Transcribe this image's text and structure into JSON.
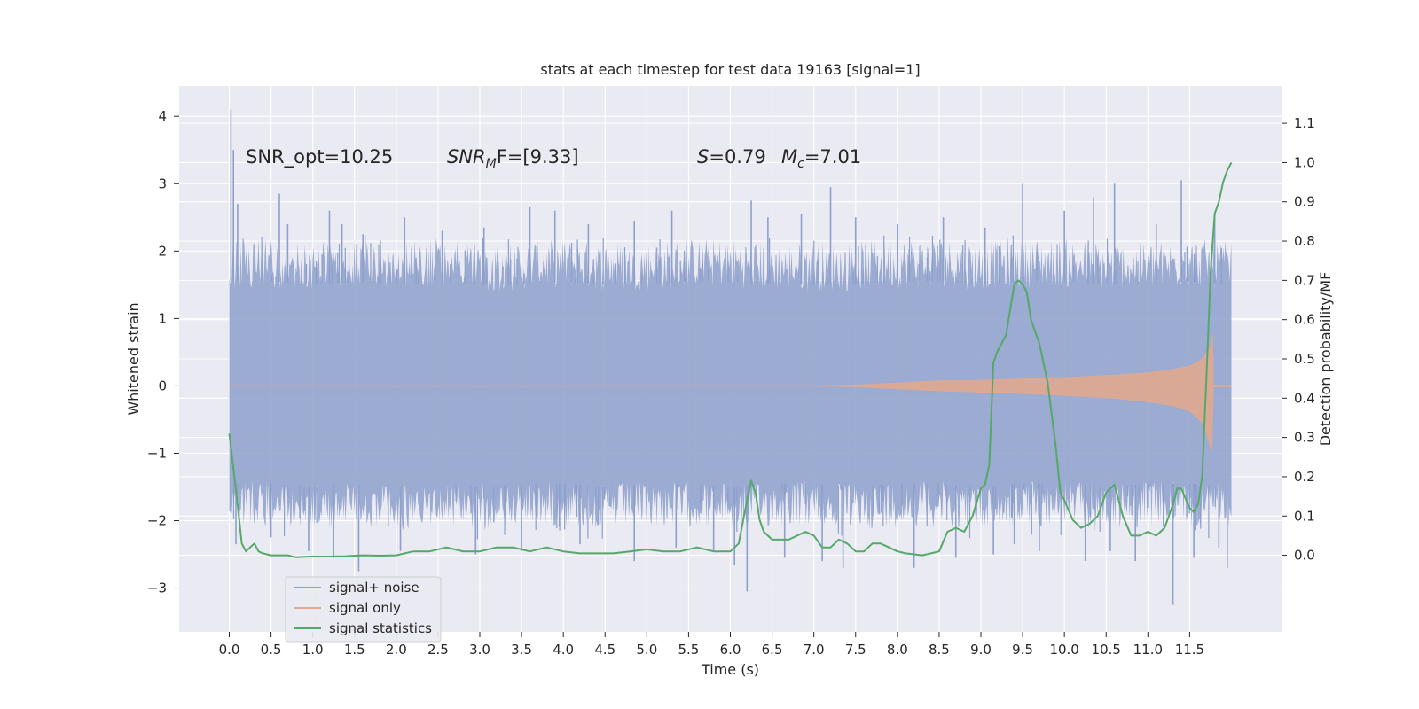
{
  "chart_data": {
    "type": "line",
    "title": "stats at each timestep for test data 19163 [signal=1]",
    "xlabel": "Time (s)",
    "ylabel": "Whitened strain",
    "ylabel_right": "Detection probability/MF",
    "xlim": [
      -0.6,
      12.6
    ],
    "ylim": [
      -3.65,
      4.45
    ],
    "ylim_right": [
      -0.195,
      1.195
    ],
    "x_ticks": [
      "0.0",
      "0.5",
      "1.0",
      "1.5",
      "2.0",
      "2.5",
      "3.0",
      "3.5",
      "4.0",
      "4.5",
      "5.0",
      "5.5",
      "6.0",
      "6.5",
      "7.0",
      "7.5",
      "8.0",
      "8.5",
      "9.0",
      "9.5",
      "10.0",
      "10.5",
      "11.0",
      "11.5"
    ],
    "y_ticks": [
      "4",
      "3",
      "2",
      "1",
      "0",
      "−1",
      "−2",
      "−3"
    ],
    "y_ticks_right": [
      "1.1",
      "1.0",
      "0.9",
      "0.8",
      "0.7",
      "0.6",
      "0.5",
      "0.4",
      "0.3",
      "0.2",
      "0.1",
      "0.0"
    ],
    "annotations": {
      "snr_opt": "SNR_opt=10.25",
      "snr_mf_main": "SNR",
      "snr_mf_sub": "M",
      "snr_mf_rest": "F=[9.33]",
      "s_main": "S",
      "s_rest": "=0.79",
      "mc_main": "M",
      "mc_sub": "c",
      "mc_rest": "=7.01"
    },
    "legend": {
      "placement": "lower-left",
      "entries": [
        {
          "label": "signal+ noise",
          "color": "#8da0cb"
        },
        {
          "label": "signal only",
          "color": "#e5a88c"
        },
        {
          "label": "signal statistics",
          "color": "#55a868"
        }
      ]
    },
    "series": [
      {
        "name": "signal+ noise",
        "kind": "noise-band",
        "color": "#8da0cb",
        "x_range": [
          0.0,
          12.0
        ],
        "band_upper": [
          [
            0.0,
            1.55
          ],
          [
            0.5,
            1.55
          ],
          [
            1.0,
            1.5
          ],
          [
            1.5,
            1.55
          ],
          [
            2.0,
            1.5
          ],
          [
            2.5,
            1.55
          ],
          [
            3.0,
            1.5
          ],
          [
            3.5,
            1.5
          ],
          [
            4.0,
            1.55
          ],
          [
            4.5,
            1.5
          ],
          [
            5.0,
            1.5
          ],
          [
            5.5,
            1.55
          ],
          [
            6.0,
            1.55
          ],
          [
            6.5,
            1.5
          ],
          [
            7.0,
            1.5
          ],
          [
            7.5,
            1.5
          ],
          [
            8.0,
            1.55
          ],
          [
            8.5,
            1.55
          ],
          [
            9.0,
            1.5
          ],
          [
            9.5,
            1.55
          ],
          [
            10.0,
            1.55
          ],
          [
            10.5,
            1.5
          ],
          [
            11.0,
            1.5
          ],
          [
            11.5,
            1.55
          ],
          [
            12.0,
            1.5
          ]
        ],
        "band_lower": [
          [
            0.0,
            -1.45
          ],
          [
            0.5,
            -1.45
          ],
          [
            1.0,
            -1.5
          ],
          [
            1.5,
            -1.45
          ],
          [
            2.0,
            -1.5
          ],
          [
            2.5,
            -1.45
          ],
          [
            3.0,
            -1.5
          ],
          [
            3.5,
            -1.45
          ],
          [
            4.0,
            -1.45
          ],
          [
            4.5,
            -1.5
          ],
          [
            5.0,
            -1.45
          ],
          [
            5.5,
            -1.45
          ],
          [
            6.0,
            -1.5
          ],
          [
            6.5,
            -1.45
          ],
          [
            7.0,
            -1.45
          ],
          [
            7.5,
            -1.5
          ],
          [
            8.0,
            -1.45
          ],
          [
            8.5,
            -1.45
          ],
          [
            9.0,
            -1.5
          ],
          [
            9.5,
            -1.45
          ],
          [
            10.0,
            -1.45
          ],
          [
            10.5,
            -1.5
          ],
          [
            11.0,
            -1.45
          ],
          [
            11.5,
            -1.45
          ],
          [
            12.0,
            -1.5
          ]
        ],
        "spikes": [
          [
            0.02,
            4.1
          ],
          [
            0.05,
            3.5
          ],
          [
            0.1,
            2.7
          ],
          [
            0.6,
            2.85
          ],
          [
            0.7,
            2.4
          ],
          [
            1.2,
            2.6
          ],
          [
            1.35,
            2.4
          ],
          [
            1.6,
            2.25
          ],
          [
            2.1,
            2.5
          ],
          [
            2.55,
            2.3
          ],
          [
            3.05,
            2.35
          ],
          [
            3.6,
            2.65
          ],
          [
            3.9,
            2.6
          ],
          [
            4.3,
            2.4
          ],
          [
            4.85,
            2.45
          ],
          [
            5.3,
            2.6
          ],
          [
            6.25,
            2.75
          ],
          [
            6.45,
            2.5
          ],
          [
            6.85,
            2.55
          ],
          [
            7.2,
            2.95
          ],
          [
            7.5,
            2.5
          ],
          [
            8.0,
            2.4
          ],
          [
            8.55,
            2.5
          ],
          [
            9.05,
            2.35
          ],
          [
            9.5,
            3.0
          ],
          [
            10.0,
            2.6
          ],
          [
            10.35,
            2.8
          ],
          [
            10.6,
            3.0
          ],
          [
            11.1,
            2.4
          ],
          [
            11.4,
            3.05
          ],
          [
            11.8,
            2.5
          ],
          [
            0.08,
            -2.35
          ],
          [
            0.5,
            -2.25
          ],
          [
            0.95,
            -2.45
          ],
          [
            1.25,
            -2.55
          ],
          [
            1.55,
            -2.75
          ],
          [
            2.05,
            -2.45
          ],
          [
            2.95,
            -2.5
          ],
          [
            3.5,
            -2.45
          ],
          [
            4.2,
            -2.35
          ],
          [
            4.85,
            -2.6
          ],
          [
            5.35,
            -2.4
          ],
          [
            5.8,
            -2.45
          ],
          [
            6.05,
            -2.65
          ],
          [
            6.2,
            -3.05
          ],
          [
            6.65,
            -2.55
          ],
          [
            7.1,
            -2.6
          ],
          [
            7.35,
            -2.7
          ],
          [
            8.2,
            -2.7
          ],
          [
            8.7,
            -2.55
          ],
          [
            9.15,
            -2.5
          ],
          [
            9.4,
            -2.35
          ],
          [
            9.7,
            -2.45
          ],
          [
            10.25,
            -2.6
          ],
          [
            10.55,
            -2.45
          ],
          [
            10.85,
            -2.6
          ],
          [
            11.3,
            -3.25
          ],
          [
            11.55,
            -2.55
          ],
          [
            11.85,
            -2.4
          ],
          [
            11.95,
            -2.7
          ]
        ]
      },
      {
        "name": "signal only",
        "kind": "envelope",
        "color": "#e5a88c",
        "x_range": [
          0.0,
          12.0
        ],
        "envelope": [
          [
            0.0,
            0.01
          ],
          [
            7.0,
            0.01
          ],
          [
            7.5,
            0.02
          ],
          [
            8.0,
            0.05
          ],
          [
            8.5,
            0.08
          ],
          [
            9.0,
            0.09
          ],
          [
            9.5,
            0.11
          ],
          [
            10.0,
            0.13
          ],
          [
            10.5,
            0.16
          ],
          [
            11.0,
            0.2
          ],
          [
            11.3,
            0.25
          ],
          [
            11.5,
            0.3
          ],
          [
            11.65,
            0.4
          ],
          [
            11.75,
            0.6
          ],
          [
            11.78,
            0.8
          ],
          [
            11.79,
            0.02
          ],
          [
            12.0,
            0.02
          ]
        ],
        "envelope_lower": [
          [
            0.0,
            -0.01
          ],
          [
            7.0,
            -0.01
          ],
          [
            7.5,
            -0.02
          ],
          [
            8.0,
            -0.05
          ],
          [
            8.5,
            -0.08
          ],
          [
            9.0,
            -0.1
          ],
          [
            9.5,
            -0.12
          ],
          [
            10.0,
            -0.15
          ],
          [
            10.5,
            -0.18
          ],
          [
            11.0,
            -0.24
          ],
          [
            11.3,
            -0.3
          ],
          [
            11.5,
            -0.38
          ],
          [
            11.65,
            -0.55
          ],
          [
            11.72,
            -0.8
          ],
          [
            11.77,
            -1.0
          ],
          [
            11.79,
            -0.02
          ],
          [
            12.0,
            -0.02
          ]
        ]
      },
      {
        "name": "signal statistics",
        "kind": "line-right-axis",
        "color": "#55a868",
        "points": [
          [
            0.0,
            0.31
          ],
          [
            0.05,
            0.22
          ],
          [
            0.1,
            0.13
          ],
          [
            0.15,
            0.03
          ],
          [
            0.2,
            0.01
          ],
          [
            0.25,
            0.02
          ],
          [
            0.3,
            0.03
          ],
          [
            0.35,
            0.01
          ],
          [
            0.4,
            0.005
          ],
          [
            0.5,
            0.0
          ],
          [
            0.6,
            0.0
          ],
          [
            0.7,
            0.0
          ],
          [
            0.8,
            -0.005
          ],
          [
            1.0,
            -0.003
          ],
          [
            1.2,
            -0.003
          ],
          [
            1.4,
            -0.002
          ],
          [
            1.6,
            0.0
          ],
          [
            1.8,
            -0.001
          ],
          [
            2.0,
            0.0
          ],
          [
            2.2,
            0.01
          ],
          [
            2.4,
            0.01
          ],
          [
            2.6,
            0.02
          ],
          [
            2.8,
            0.01
          ],
          [
            3.0,
            0.01
          ],
          [
            3.2,
            0.02
          ],
          [
            3.4,
            0.02
          ],
          [
            3.6,
            0.01
          ],
          [
            3.8,
            0.02
          ],
          [
            4.0,
            0.01
          ],
          [
            4.2,
            0.005
          ],
          [
            4.4,
            0.005
          ],
          [
            4.6,
            0.005
          ],
          [
            4.8,
            0.01
          ],
          [
            5.0,
            0.015
          ],
          [
            5.2,
            0.01
          ],
          [
            5.4,
            0.01
          ],
          [
            5.6,
            0.02
          ],
          [
            5.8,
            0.01
          ],
          [
            6.0,
            0.01
          ],
          [
            6.1,
            0.03
          ],
          [
            6.2,
            0.14
          ],
          [
            6.25,
            0.19
          ],
          [
            6.3,
            0.16
          ],
          [
            6.35,
            0.09
          ],
          [
            6.4,
            0.06
          ],
          [
            6.5,
            0.04
          ],
          [
            6.7,
            0.04
          ],
          [
            6.8,
            0.05
          ],
          [
            6.9,
            0.06
          ],
          [
            7.0,
            0.05
          ],
          [
            7.1,
            0.02
          ],
          [
            7.2,
            0.02
          ],
          [
            7.3,
            0.04
          ],
          [
            7.4,
            0.03
          ],
          [
            7.5,
            0.01
          ],
          [
            7.6,
            0.01
          ],
          [
            7.7,
            0.03
          ],
          [
            7.8,
            0.03
          ],
          [
            7.9,
            0.02
          ],
          [
            8.0,
            0.01
          ],
          [
            8.1,
            0.005
          ],
          [
            8.3,
            0.0
          ],
          [
            8.5,
            0.01
          ],
          [
            8.6,
            0.06
          ],
          [
            8.7,
            0.07
          ],
          [
            8.8,
            0.06
          ],
          [
            8.9,
            0.1
          ],
          [
            9.0,
            0.17
          ],
          [
            9.05,
            0.18
          ],
          [
            9.1,
            0.23
          ],
          [
            9.15,
            0.49
          ],
          [
            9.2,
            0.52
          ],
          [
            9.3,
            0.56
          ],
          [
            9.4,
            0.69
          ],
          [
            9.45,
            0.7
          ],
          [
            9.5,
            0.69
          ],
          [
            9.55,
            0.67
          ],
          [
            9.6,
            0.6
          ],
          [
            9.7,
            0.54
          ],
          [
            9.8,
            0.44
          ],
          [
            9.9,
            0.27
          ],
          [
            9.95,
            0.16
          ],
          [
            10.0,
            0.14
          ],
          [
            10.1,
            0.09
          ],
          [
            10.2,
            0.07
          ],
          [
            10.3,
            0.08
          ],
          [
            10.4,
            0.1
          ],
          [
            10.5,
            0.16
          ],
          [
            10.6,
            0.18
          ],
          [
            10.7,
            0.1
          ],
          [
            10.8,
            0.05
          ],
          [
            10.9,
            0.05
          ],
          [
            11.0,
            0.06
          ],
          [
            11.1,
            0.05
          ],
          [
            11.2,
            0.07
          ],
          [
            11.3,
            0.13
          ],
          [
            11.35,
            0.17
          ],
          [
            11.4,
            0.17
          ],
          [
            11.5,
            0.12
          ],
          [
            11.55,
            0.11
          ],
          [
            11.6,
            0.13
          ],
          [
            11.65,
            0.2
          ],
          [
            11.7,
            0.45
          ],
          [
            11.75,
            0.72
          ],
          [
            11.8,
            0.87
          ],
          [
            11.85,
            0.9
          ],
          [
            11.9,
            0.95
          ],
          [
            11.95,
            0.98
          ],
          [
            12.0,
            1.0
          ]
        ]
      }
    ]
  }
}
